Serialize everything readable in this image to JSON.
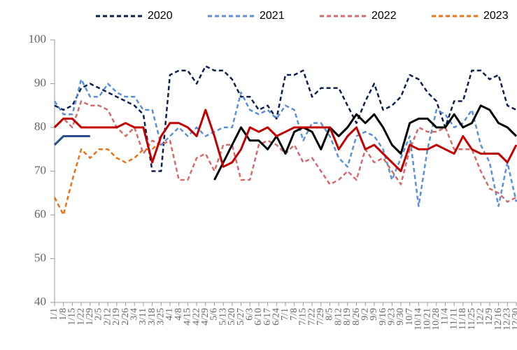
{
  "chart_data": {
    "type": "line",
    "categories": [
      "1/1",
      "1/8",
      "1/15",
      "1/22",
      "1/29",
      "2/5",
      "2/12",
      "2/19",
      "2/26",
      "3/4",
      "3/11",
      "3/18",
      "3/25",
      "4/1",
      "4/8",
      "4/15",
      "4/22",
      "4/29",
      "5/6",
      "5/13",
      "5/20",
      "5/27",
      "6/3",
      "6/10",
      "6/17",
      "6/24",
      "7/1",
      "7/8",
      "7/15",
      "7/22",
      "7/29",
      "8/5",
      "8/12",
      "8/19",
      "8/26",
      "9/2",
      "9/9",
      "9/16",
      "9/23",
      "9/30",
      "10/7",
      "10/14",
      "10/21",
      "10/28",
      "11/4",
      "11/11",
      "11/18",
      "11/25",
      "12/2",
      "12/9",
      "12/16",
      "12/23",
      "12/30"
    ],
    "series": [
      {
        "name": "2020",
        "color": "#0d1f4f",
        "style": "dashed",
        "values": [
          85,
          84,
          85,
          89,
          90,
          89,
          88,
          87,
          86,
          85,
          83,
          70,
          70,
          92,
          93,
          93,
          90,
          94,
          93,
          93,
          91,
          87,
          87,
          84,
          85,
          82,
          92,
          92,
          93,
          87,
          89,
          89,
          89,
          85,
          81,
          86,
          90,
          84,
          85,
          87,
          92,
          91,
          88,
          86,
          80,
          86,
          86,
          93,
          93,
          91,
          92,
          85,
          84
        ]
      },
      {
        "name": "2021",
        "color": "#5b8fd6",
        "style": "dashed",
        "values": [
          86,
          83,
          83,
          91,
          87,
          87,
          90,
          88,
          87,
          87,
          84,
          84,
          76,
          78,
          80,
          78,
          80,
          78,
          79,
          80,
          80,
          88,
          84,
          83,
          84,
          82,
          85,
          84,
          77,
          81,
          81,
          78,
          73,
          71,
          78,
          79,
          78,
          75,
          68,
          73,
          78,
          62,
          75,
          84,
          83,
          80,
          81,
          84,
          76,
          72,
          62,
          72,
          63
        ]
      },
      {
        "name": "2022",
        "color": "#d36b6b",
        "style": "dashed",
        "values": [
          80,
          82,
          80,
          86,
          85,
          85,
          84,
          80,
          78,
          80,
          74,
          77,
          76,
          77,
          68,
          68,
          73,
          74,
          70,
          76,
          76,
          68,
          68,
          76,
          77,
          76,
          74,
          76,
          72,
          73,
          70,
          67,
          68,
          70,
          68,
          75,
          72,
          73,
          70,
          67,
          75,
          80,
          79,
          79,
          80,
          75,
          75,
          75,
          70,
          66,
          65,
          63,
          64
        ]
      },
      {
        "name": "2023",
        "color": "#e8741a",
        "style": "dashed",
        "values": [
          64,
          60,
          68,
          75,
          73,
          75,
          75,
          73,
          72,
          73,
          75,
          75,
          77,
          null,
          null,
          null,
          null,
          null,
          null,
          null,
          null,
          null,
          null,
          null,
          null,
          null,
          null,
          null,
          null,
          null,
          null,
          null,
          null,
          null,
          null,
          null,
          null,
          null,
          null,
          null,
          null,
          null,
          null,
          null,
          null,
          null,
          null,
          null,
          null,
          null,
          null,
          null,
          null
        ]
      },
      {
        "color": "#000000",
        "style": "solid",
        "values": [
          null,
          null,
          null,
          null,
          null,
          null,
          null,
          null,
          null,
          null,
          null,
          null,
          null,
          null,
          null,
          null,
          null,
          null,
          68,
          72,
          76,
          80,
          77,
          77,
          75,
          78,
          74,
          79,
          80,
          79,
          75,
          80,
          78,
          80,
          83,
          81,
          83,
          80,
          76,
          74,
          81,
          82,
          82,
          80,
          80,
          83,
          80,
          81,
          85,
          84,
          81,
          80,
          78
        ]
      },
      {
        "color": "#c00000",
        "style": "solid",
        "values": [
          80,
          82,
          82,
          80,
          80,
          80,
          80,
          80,
          81,
          80,
          80,
          72,
          78,
          81,
          81,
          80,
          78,
          84,
          78,
          71,
          72,
          75,
          80,
          79,
          80,
          78,
          79,
          80,
          80,
          80,
          80,
          80,
          75,
          78,
          80,
          75,
          76,
          74,
          72,
          70,
          76,
          75,
          75,
          76,
          75,
          74,
          78,
          75,
          74,
          74,
          74,
          72,
          76
        ]
      },
      {
        "color": "#2e4f8f",
        "style": "solid",
        "values": [
          76,
          78,
          78,
          78,
          78,
          null,
          null,
          null,
          null,
          null,
          null,
          null,
          null,
          null,
          null,
          null,
          null,
          null,
          null,
          null,
          null,
          null,
          null,
          null,
          null,
          null,
          null,
          null,
          null,
          null,
          null,
          null,
          null,
          null,
          null,
          null,
          null,
          null,
          null,
          null,
          null,
          null,
          null,
          null,
          null,
          null,
          null,
          null,
          null,
          null,
          null,
          null,
          null
        ]
      }
    ],
    "ylim": [
      40,
      100
    ],
    "yticks": [
      40,
      50,
      60,
      70,
      80,
      90,
      100
    ],
    "legend": "top"
  }
}
